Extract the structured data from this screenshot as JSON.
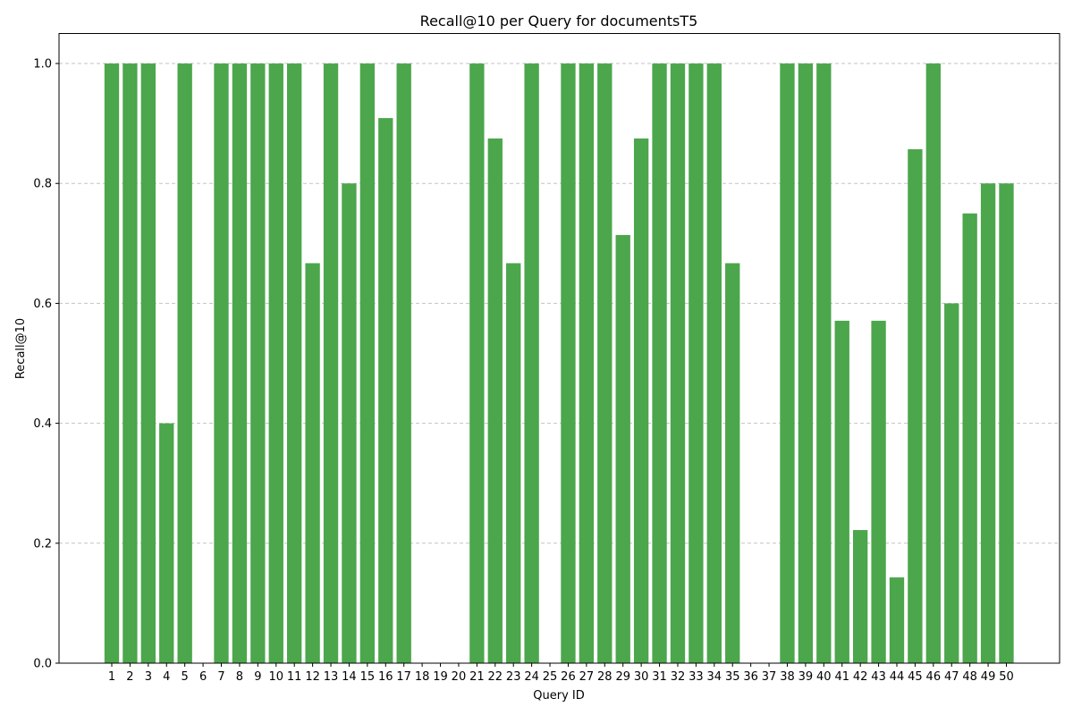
{
  "chart_data": {
    "type": "bar",
    "title": "Recall@10 per Query for documentsT5",
    "xlabel": "Query ID",
    "ylabel": "Recall@10",
    "ylim": [
      0.0,
      1.05
    ],
    "yticks": [
      "0.0",
      "0.2",
      "0.4",
      "0.6",
      "0.8",
      "1.0"
    ],
    "grid": "y-dashed",
    "bar_color": "#4ca64c",
    "categories": [
      "1",
      "2",
      "3",
      "4",
      "5",
      "6",
      "7",
      "8",
      "9",
      "10",
      "11",
      "12",
      "13",
      "14",
      "15",
      "16",
      "17",
      "18",
      "19",
      "20",
      "21",
      "22",
      "23",
      "24",
      "25",
      "26",
      "27",
      "28",
      "29",
      "30",
      "31",
      "32",
      "33",
      "34",
      "35",
      "36",
      "37",
      "38",
      "39",
      "40",
      "41",
      "42",
      "43",
      "44",
      "45",
      "46",
      "47",
      "48",
      "49",
      "50"
    ],
    "values": [
      1.0,
      1.0,
      1.0,
      0.4,
      1.0,
      0.0,
      1.0,
      1.0,
      1.0,
      1.0,
      1.0,
      0.667,
      1.0,
      0.8,
      1.0,
      0.909,
      1.0,
      0.0,
      0.0,
      0.0,
      1.0,
      0.875,
      0.667,
      1.0,
      0.0,
      1.0,
      1.0,
      1.0,
      0.714,
      0.875,
      1.0,
      1.0,
      1.0,
      1.0,
      0.667,
      0.0,
      0.0,
      1.0,
      1.0,
      1.0,
      0.571,
      0.222,
      0.571,
      0.143,
      0.857,
      1.0,
      0.6,
      0.75,
      0.8,
      0.8
    ]
  }
}
